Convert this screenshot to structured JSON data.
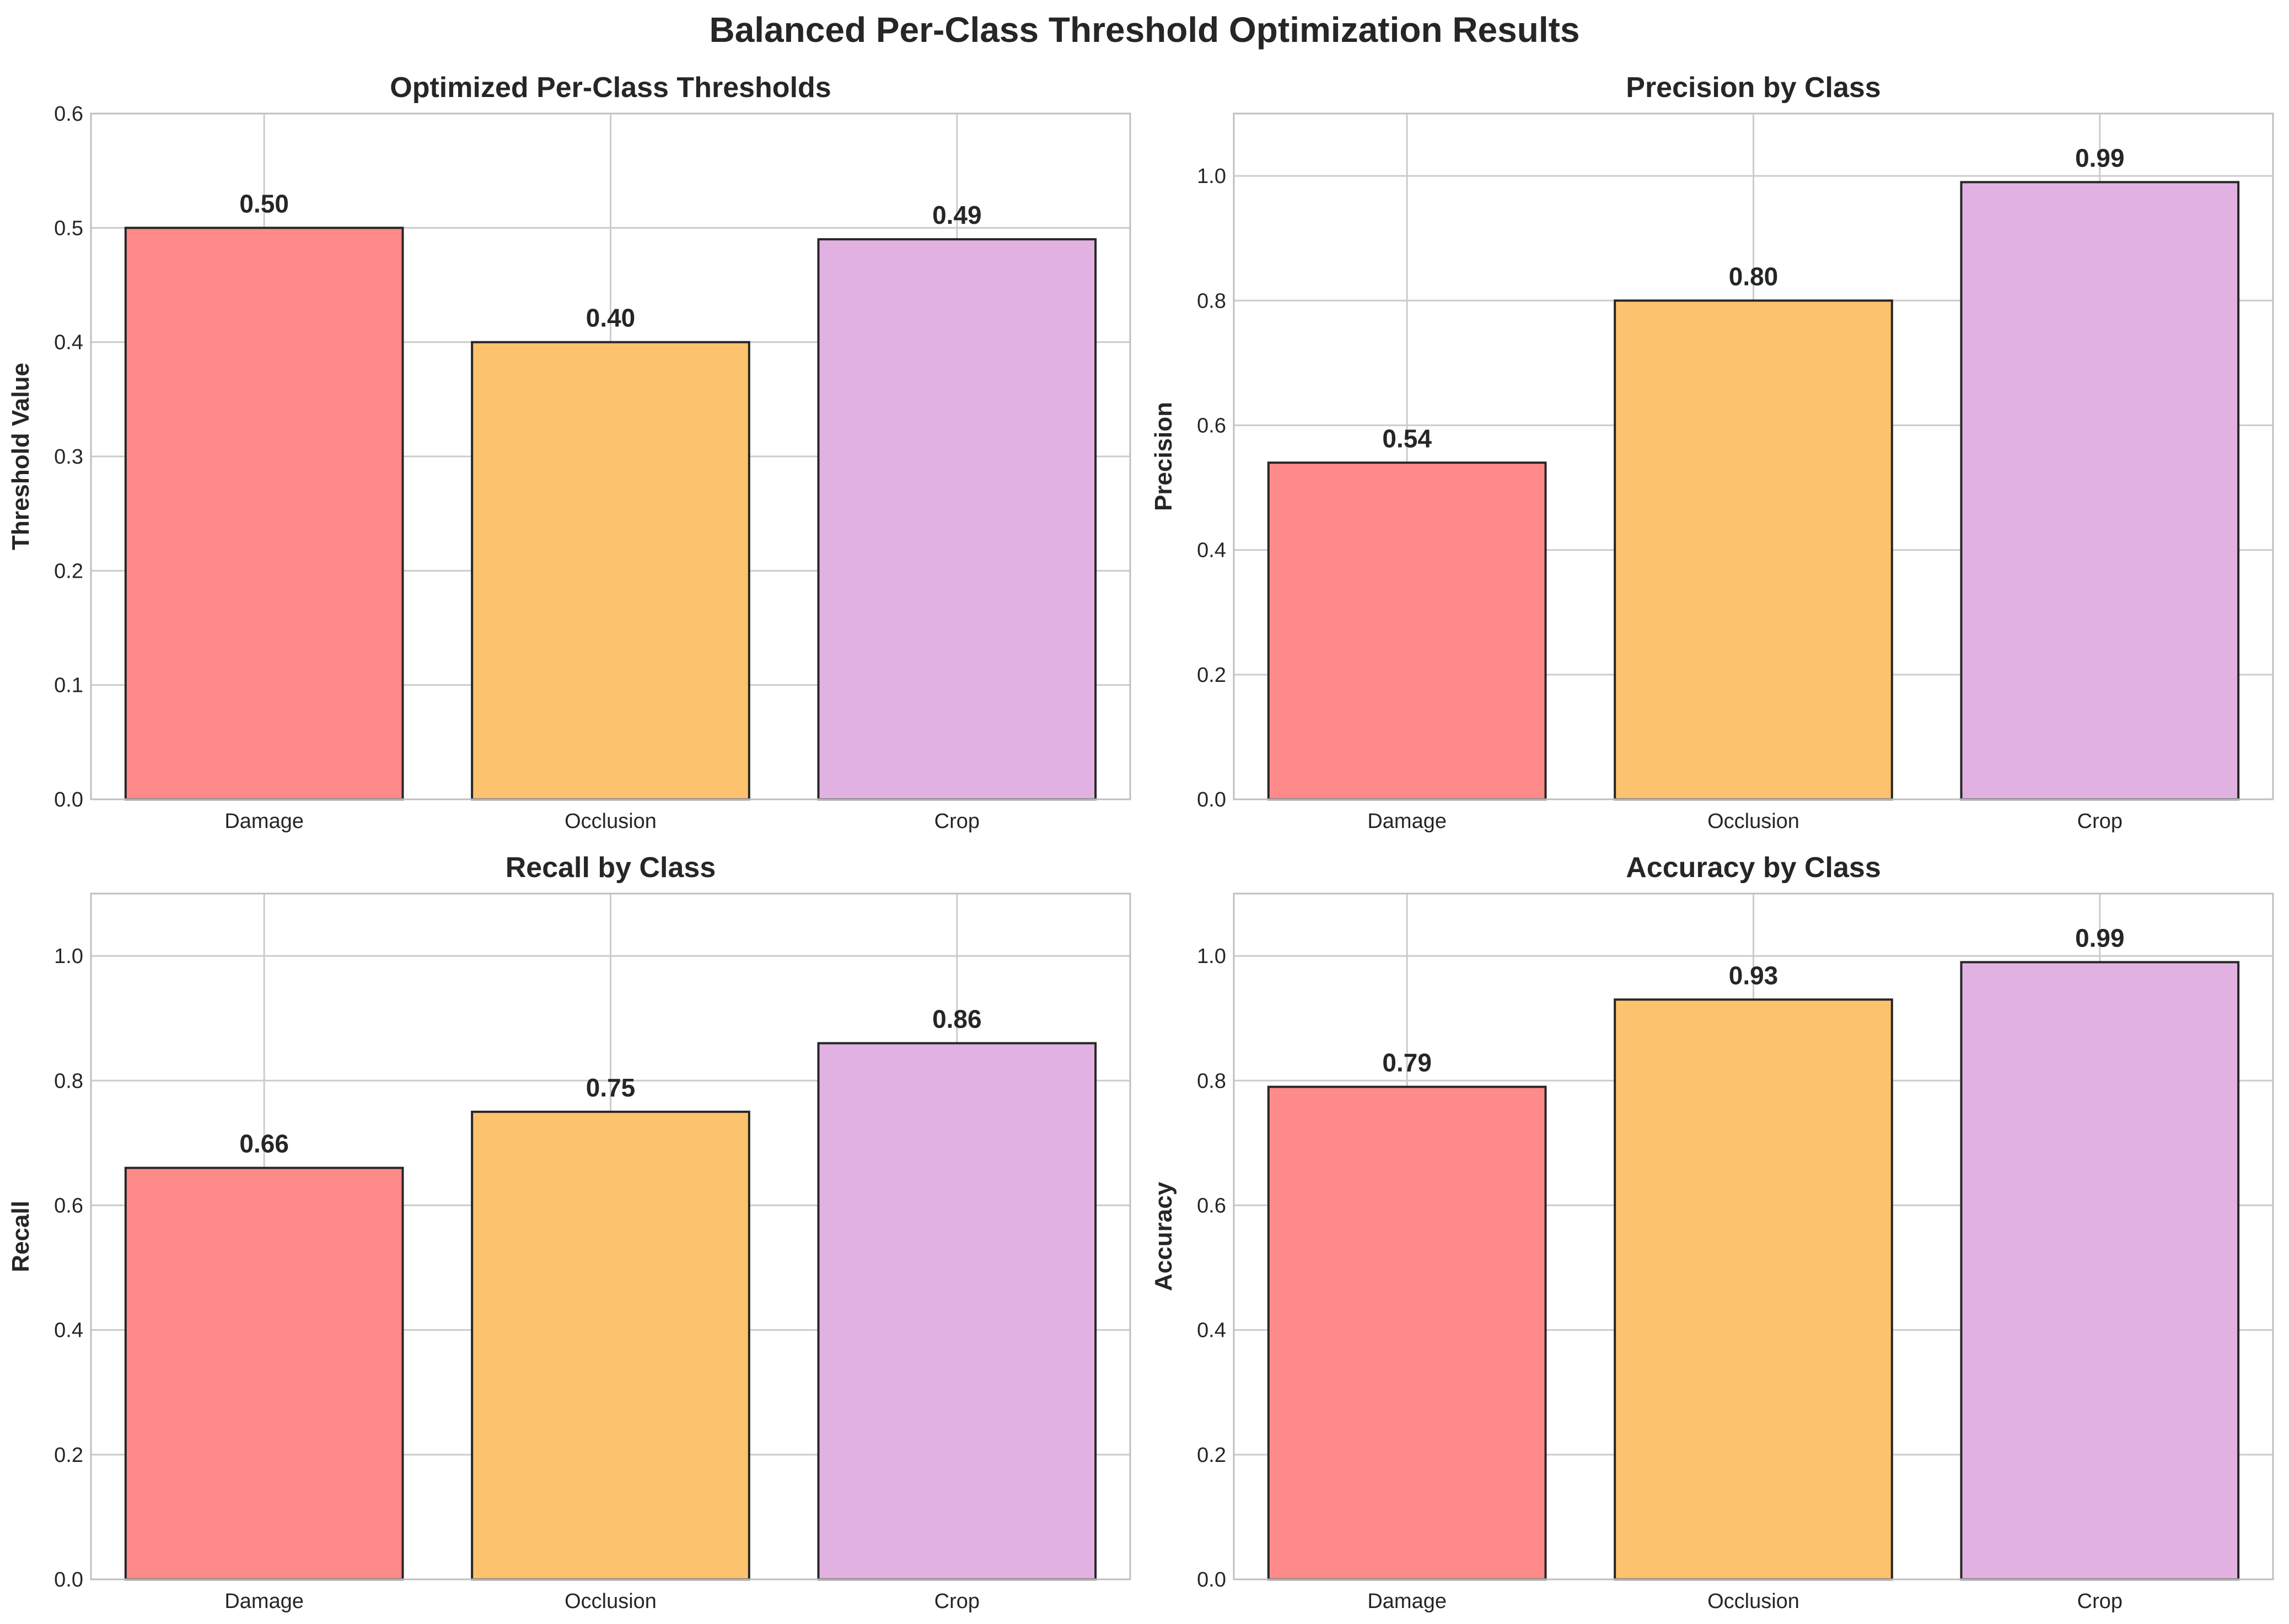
{
  "figure": {
    "title": "Balanced Per-Class Threshold Optimization Results"
  },
  "chart_data": [
    {
      "type": "bar",
      "title": "Optimized Per-Class Thresholds",
      "xlabel": "",
      "ylabel": "Threshold Value",
      "categories": [
        "Damage",
        "Occlusion",
        "Crop"
      ],
      "values": [
        0.5,
        0.4,
        0.49
      ],
      "value_labels": [
        "0.50",
        "0.40",
        "0.49"
      ],
      "ylim": [
        0,
        0.6
      ],
      "yticks": [
        0.0,
        0.1,
        0.2,
        0.3,
        0.4,
        0.5,
        0.6
      ],
      "ytick_labels": [
        "0.0",
        "0.1",
        "0.2",
        "0.3",
        "0.4",
        "0.5",
        "0.6"
      ],
      "bar_colors": [
        "#ff8a8a",
        "#fdc26d",
        "#e1b2e1"
      ],
      "edge_color": "#262626",
      "grid": true
    },
    {
      "type": "bar",
      "title": "Precision by Class",
      "xlabel": "",
      "ylabel": "Precision",
      "categories": [
        "Damage",
        "Occlusion",
        "Crop"
      ],
      "values": [
        0.54,
        0.8,
        0.99
      ],
      "value_labels": [
        "0.54",
        "0.80",
        "0.99"
      ],
      "ylim": [
        0,
        1.1
      ],
      "yticks": [
        0.0,
        0.2,
        0.4,
        0.6,
        0.8,
        1.0
      ],
      "ytick_labels": [
        "0.0",
        "0.2",
        "0.4",
        "0.6",
        "0.8",
        "1.0"
      ],
      "bar_colors": [
        "#ff8a8a",
        "#fdc26d",
        "#e1b2e1"
      ],
      "edge_color": "#262626",
      "grid": true
    },
    {
      "type": "bar",
      "title": "Recall by Class",
      "xlabel": "",
      "ylabel": "Recall",
      "categories": [
        "Damage",
        "Occlusion",
        "Crop"
      ],
      "values": [
        0.66,
        0.75,
        0.86
      ],
      "value_labels": [
        "0.66",
        "0.75",
        "0.86"
      ],
      "ylim": [
        0,
        1.1
      ],
      "yticks": [
        0.0,
        0.2,
        0.4,
        0.6,
        0.8,
        1.0
      ],
      "ytick_labels": [
        "0.0",
        "0.2",
        "0.4",
        "0.6",
        "0.8",
        "1.0"
      ],
      "bar_colors": [
        "#ff8a8a",
        "#fdc26d",
        "#e1b2e1"
      ],
      "edge_color": "#262626",
      "grid": true
    },
    {
      "type": "bar",
      "title": "Accuracy by Class",
      "xlabel": "",
      "ylabel": "Accuracy",
      "categories": [
        "Damage",
        "Occlusion",
        "Crop"
      ],
      "values": [
        0.79,
        0.93,
        0.99
      ],
      "value_labels": [
        "0.79",
        "0.93",
        "0.99"
      ],
      "ylim": [
        0,
        1.1
      ],
      "yticks": [
        0.0,
        0.2,
        0.4,
        0.6,
        0.8,
        1.0
      ],
      "ytick_labels": [
        "0.0",
        "0.2",
        "0.4",
        "0.6",
        "0.8",
        "1.0"
      ],
      "bar_colors": [
        "#ff8a8a",
        "#fdc26d",
        "#e1b2e1"
      ],
      "edge_color": "#262626",
      "grid": true
    }
  ]
}
